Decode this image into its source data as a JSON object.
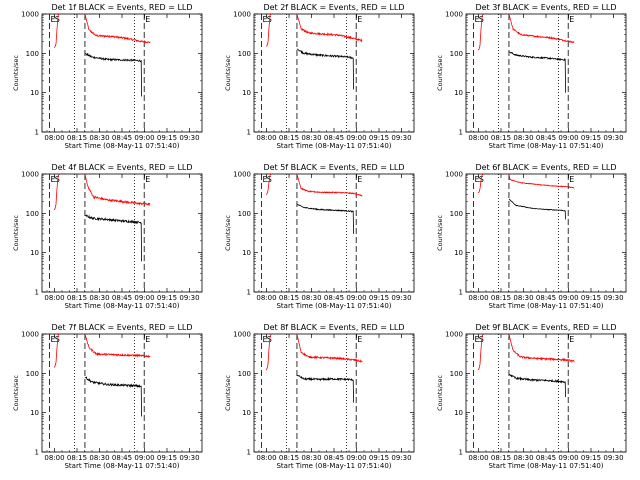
{
  "chart_data": [
    {
      "type": "line",
      "title": "Det 1f BLACK = Events, RED = LLD",
      "xlabel": "Start Time (08-May-11 07:51:40)",
      "ylabel": "Counts/sec",
      "yscale": "log",
      "ylim": [
        1,
        1000
      ],
      "xticks": [
        "08:00",
        "08:15",
        "08:30",
        "08:45",
        "09:00",
        "09:15",
        "09:30"
      ],
      "yticks": [
        "1",
        "10",
        "100",
        "1000"
      ],
      "markers": [
        "E",
        "S",
        "E"
      ],
      "series": [
        {
          "name": "RED",
          "color": "#ff0000",
          "pre": [
            [
              -0.2,
              140
            ],
            [
              0.3,
              145
            ],
            [
              1.0,
              175
            ],
            [
              1.6,
              380
            ],
            [
              2.4,
              950
            ],
            [
              3.4,
              1000
            ]
          ],
          "post": [
            [
              20.3,
              1000
            ],
            [
              23,
              390
            ],
            [
              28,
              280
            ],
            [
              38,
              270
            ],
            [
              48,
              240
            ],
            [
              58,
              200
            ],
            [
              63.8,
              190
            ]
          ],
          "noise": 0.05
        },
        {
          "name": "BLACK",
          "color": "#000000",
          "post": [
            [
              20.3,
              100
            ],
            [
              25,
              80
            ],
            [
              35,
              70
            ],
            [
              45,
              68
            ],
            [
              55,
              66
            ],
            [
              58,
              64
            ]
          ],
          "noise": 0.05,
          "drop": [
            58,
            8
          ]
        }
      ]
    },
    {
      "type": "line",
      "title": "Det 2f BLACK = Events, RED = LLD",
      "xlabel": "Start Time (08-May-11 07:51:40)",
      "ylabel": "Counts/sec",
      "yscale": "log",
      "ylim": [
        1,
        1000
      ],
      "xticks": [
        "08:00",
        "08:15",
        "08:30",
        "08:45",
        "09:00",
        "09:15",
        "09:30"
      ],
      "yticks": [
        "1",
        "10",
        "100",
        "1000"
      ],
      "markers": [
        "E",
        "S",
        "E"
      ],
      "series": [
        {
          "name": "RED",
          "color": "#ff0000",
          "pre": [
            [
              -0.2,
              150
            ],
            [
              0.3,
              155
            ],
            [
              1.0,
              190
            ],
            [
              1.6,
              420
            ],
            [
              2.4,
              950
            ],
            [
              3.4,
              1000
            ]
          ],
          "post": [
            [
              20.3,
              1000
            ],
            [
              23,
              420
            ],
            [
              28,
              330
            ],
            [
              38,
              310
            ],
            [
              48,
              290
            ],
            [
              58,
              240
            ],
            [
              63.8,
              210
            ]
          ],
          "noise": 0.05
        },
        {
          "name": "BLACK",
          "color": "#000000",
          "post": [
            [
              20.3,
              130
            ],
            [
              25,
              100
            ],
            [
              35,
              90
            ],
            [
              45,
              85
            ],
            [
              55,
              80
            ],
            [
              58,
              75
            ]
          ],
          "noise": 0.05,
          "drop": [
            58,
            12
          ]
        }
      ]
    },
    {
      "type": "line",
      "title": "Det 3f BLACK = Events, RED = LLD",
      "xlabel": "Start Time (08-May-11 07:51:40)",
      "ylabel": "Counts/sec",
      "yscale": "log",
      "ylim": [
        1,
        1000
      ],
      "xticks": [
        "08:00",
        "08:15",
        "08:30",
        "08:45",
        "09:00",
        "09:15",
        "09:30"
      ],
      "yticks": [
        "1",
        "10",
        "100",
        "1000"
      ],
      "markers": [
        "E",
        "S",
        "E"
      ],
      "series": [
        {
          "name": "RED",
          "color": "#ff0000",
          "pre": [
            [
              -0.2,
              120
            ],
            [
              0.3,
              125
            ],
            [
              1.0,
              160
            ],
            [
              1.6,
              380
            ],
            [
              2.4,
              900
            ],
            [
              3.4,
              1000
            ]
          ],
          "post": [
            [
              20.3,
              1000
            ],
            [
              23,
              420
            ],
            [
              28,
              300
            ],
            [
              38,
              270
            ],
            [
              48,
              250
            ],
            [
              58,
              210
            ],
            [
              63.8,
              190
            ]
          ],
          "noise": 0.04
        },
        {
          "name": "BLACK",
          "color": "#000000",
          "post": [
            [
              20.3,
              110
            ],
            [
              25,
              90
            ],
            [
              35,
              80
            ],
            [
              45,
              76
            ],
            [
              55,
              70
            ],
            [
              58,
              68
            ]
          ],
          "noise": 0.04,
          "drop": [
            58,
            10
          ]
        }
      ]
    },
    {
      "type": "line",
      "title": "Det 4f BLACK = Events, RED = LLD",
      "xlabel": "Start Time (08-May-11 07:51:40)",
      "ylabel": "Counts/sec",
      "yscale": "log",
      "ylim": [
        1,
        1000
      ],
      "xticks": [
        "08:00",
        "08:15",
        "08:30",
        "08:45",
        "09:00",
        "09:15",
        "09:30"
      ],
      "yticks": [
        "1",
        "10",
        "100",
        "1000"
      ],
      "markers": [
        "E",
        "S",
        "E"
      ],
      "series": [
        {
          "name": "RED",
          "color": "#ff0000",
          "pre": [
            [
              -0.2,
              120
            ],
            [
              0.3,
              130
            ],
            [
              1.0,
              170
            ],
            [
              1.6,
              400
            ],
            [
              2.4,
              900
            ],
            [
              3.4,
              1000
            ]
          ],
          "post": [
            [
              20.3,
              1000
            ],
            [
              22,
              500
            ],
            [
              26,
              260
            ],
            [
              35,
              220
            ],
            [
              45,
              200
            ],
            [
              55,
              180
            ],
            [
              63.8,
              170
            ]
          ],
          "noise": 0.06
        },
        {
          "name": "BLACK",
          "color": "#000000",
          "post": [
            [
              20.3,
              90
            ],
            [
              25,
              75
            ],
            [
              35,
              70
            ],
            [
              45,
              64
            ],
            [
              55,
              60
            ],
            [
              58,
              58
            ]
          ],
          "noise": 0.06,
          "drop": [
            58,
            6
          ]
        }
      ]
    },
    {
      "type": "line",
      "title": "Det 5f BLACK = Events, RED = LLD",
      "xlabel": "Start Time (08-May-11 07:51:40)",
      "ylabel": "Counts/sec",
      "yscale": "log",
      "ylim": [
        1,
        1000
      ],
      "xticks": [
        "08:00",
        "08:15",
        "08:30",
        "08:45",
        "09:00",
        "09:15",
        "09:30"
      ],
      "yticks": [
        "1",
        "10",
        "100",
        "1000"
      ],
      "markers": [
        "E",
        "S",
        "E"
      ],
      "series": [
        {
          "name": "RED",
          "color": "#ff0000",
          "pre": [
            [
              -0.2,
              300
            ],
            [
              0.3,
              310
            ],
            [
              1.0,
              380
            ],
            [
              1.6,
              600
            ],
            [
              2.4,
              950
            ],
            [
              3.4,
              1000
            ]
          ],
          "post": [
            [
              20.3,
              1000
            ],
            [
              23,
              430
            ],
            [
              28,
              360
            ],
            [
              38,
              340
            ],
            [
              48,
              340
            ],
            [
              58,
              320
            ],
            [
              63.8,
              280
            ]
          ],
          "noise": 0.03
        },
        {
          "name": "BLACK",
          "color": "#000000",
          "post": [
            [
              20.3,
              170
            ],
            [
              25,
              140
            ],
            [
              35,
              125
            ],
            [
              45,
              120
            ],
            [
              55,
              115
            ],
            [
              58,
              110
            ]
          ],
          "noise": 0.03,
          "drop": [
            58,
            30
          ]
        }
      ]
    },
    {
      "type": "line",
      "title": "Det 6f BLACK = Events, RED = LLD",
      "xlabel": "Start Time (08-May-11 07:51:40)",
      "ylabel": "Counts/sec",
      "yscale": "log",
      "ylim": [
        1,
        1000
      ],
      "xticks": [
        "08:00",
        "08:15",
        "08:30",
        "08:45",
        "09:00",
        "09:15",
        "09:30"
      ],
      "yticks": [
        "1",
        "10",
        "100",
        "1000"
      ],
      "markers": [
        "E",
        "S",
        "E"
      ],
      "series": [
        {
          "name": "RED",
          "color": "#ff0000",
          "pre": [
            [
              -0.2,
              330
            ],
            [
              0.3,
              340
            ],
            [
              1.0,
              420
            ],
            [
              1.6,
              650
            ],
            [
              2.4,
              950
            ],
            [
              3.4,
              1000
            ]
          ],
          "post": [
            [
              20.3,
              1000
            ],
            [
              21,
              720
            ],
            [
              28,
              600
            ],
            [
              38,
              550
            ],
            [
              48,
              500
            ],
            [
              58,
              480
            ],
            [
              63.8,
              450
            ]
          ],
          "noise": 0.02
        },
        {
          "name": "BLACK",
          "color": "#000000",
          "post": [
            [
              20.3,
              230
            ],
            [
              25,
              160
            ],
            [
              35,
              135
            ],
            [
              45,
              125
            ],
            [
              55,
              120
            ],
            [
              58,
              115
            ]
          ],
          "noise": 0.02,
          "drop": [
            58,
            70
          ]
        }
      ]
    },
    {
      "type": "line",
      "title": "Det 7f BLACK = Events, RED = LLD",
      "xlabel": "Start Time (08-May-11 07:51:40)",
      "ylabel": "Counts/sec",
      "yscale": "log",
      "ylim": [
        1,
        1000
      ],
      "xticks": [
        "08:00",
        "08:15",
        "08:30",
        "08:45",
        "09:00",
        "09:15",
        "09:30"
      ],
      "yticks": [
        "1",
        "10",
        "100",
        "1000"
      ],
      "markers": [
        "E",
        "S",
        "E"
      ],
      "series": [
        {
          "name": "RED",
          "color": "#ff0000",
          "pre": [
            [
              -0.2,
              140
            ],
            [
              0.3,
              150
            ],
            [
              1.0,
              190
            ],
            [
              1.6,
              420
            ],
            [
              2.4,
              950
            ],
            [
              3.4,
              1000
            ]
          ],
          "post": [
            [
              20.3,
              1000
            ],
            [
              23,
              450
            ],
            [
              28,
              310
            ],
            [
              38,
              300
            ],
            [
              48,
              290
            ],
            [
              58,
              280
            ],
            [
              63.8,
              270
            ]
          ],
          "noise": 0.05
        },
        {
          "name": "BLACK",
          "color": "#000000",
          "post": [
            [
              20.3,
              80
            ],
            [
              25,
              60
            ],
            [
              35,
              52
            ],
            [
              45,
              50
            ],
            [
              55,
              48
            ],
            [
              58,
              46
            ]
          ],
          "noise": 0.06,
          "drop": [
            58,
            8
          ]
        }
      ]
    },
    {
      "type": "line",
      "title": "Det 8f BLACK = Events, RED = LLD",
      "xlabel": "Start Time (08-May-11 07:51:40)",
      "ylabel": "Counts/sec",
      "yscale": "log",
      "ylim": [
        1,
        1000
      ],
      "xticks": [
        "08:00",
        "08:15",
        "08:30",
        "08:45",
        "09:00",
        "09:15",
        "09:30"
      ],
      "yticks": [
        "1",
        "10",
        "100",
        "1000"
      ],
      "markers": [
        "E",
        "S",
        "E"
      ],
      "series": [
        {
          "name": "RED",
          "color": "#ff0000",
          "pre": [
            [
              -0.2,
              120
            ],
            [
              0.3,
              130
            ],
            [
              1.0,
              170
            ],
            [
              1.6,
              400
            ],
            [
              2.4,
              900
            ],
            [
              3.4,
              1000
            ]
          ],
          "post": [
            [
              20.3,
              1000
            ],
            [
              23,
              350
            ],
            [
              28,
              260
            ],
            [
              38,
              250
            ],
            [
              48,
              240
            ],
            [
              58,
              220
            ],
            [
              63.8,
              200
            ]
          ],
          "noise": 0.05
        },
        {
          "name": "BLACK",
          "color": "#000000",
          "post": [
            [
              20.3,
              90
            ],
            [
              25,
              72
            ],
            [
              35,
              70
            ],
            [
              45,
              72
            ],
            [
              55,
              70
            ],
            [
              58,
              68
            ]
          ],
          "noise": 0.05,
          "drop": [
            58,
            18
          ]
        }
      ]
    },
    {
      "type": "line",
      "title": "Det 9f BLACK = Events, RED = LLD",
      "xlabel": "Start Time (08-May-11 07:51:40)",
      "ylabel": "Counts/sec",
      "yscale": "log",
      "ylim": [
        1,
        1000
      ],
      "xticks": [
        "08:00",
        "08:15",
        "08:30",
        "08:45",
        "09:00",
        "09:15",
        "09:30"
      ],
      "yticks": [
        "1",
        "10",
        "100",
        "1000"
      ],
      "markers": [
        "E",
        "S",
        "E"
      ],
      "series": [
        {
          "name": "RED",
          "color": "#ff0000",
          "pre": [
            [
              -0.2,
              120
            ],
            [
              0.3,
              130
            ],
            [
              1.0,
              170
            ],
            [
              1.6,
              380
            ],
            [
              2.4,
              900
            ],
            [
              3.4,
              1000
            ]
          ],
          "post": [
            [
              20.3,
              1000
            ],
            [
              23,
              380
            ],
            [
              28,
              260
            ],
            [
              38,
              240
            ],
            [
              48,
              230
            ],
            [
              58,
              220
            ],
            [
              63.8,
              200
            ]
          ],
          "noise": 0.05
        },
        {
          "name": "BLACK",
          "color": "#000000",
          "post": [
            [
              20.3,
              95
            ],
            [
              25,
              75
            ],
            [
              35,
              68
            ],
            [
              45,
              66
            ],
            [
              55,
              62
            ],
            [
              58,
              60
            ]
          ],
          "noise": 0.05,
          "drop": [
            58,
            25
          ]
        }
      ]
    }
  ]
}
